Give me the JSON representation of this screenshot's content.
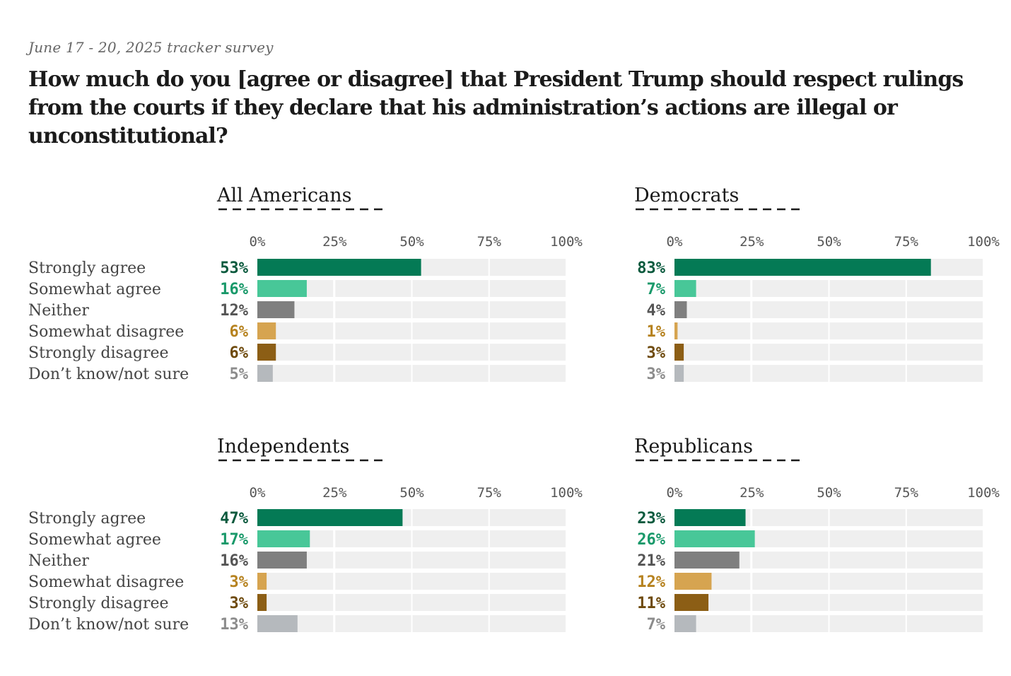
{
  "subtitle": "June 17 - 20, 2025 tracker survey",
  "title": "How much do you [agree or disagree] that President Trump should respect rulings from the courts if they declare that his administration’s actions are illegal or unconstitutional?",
  "colors": {
    "Strongly agree": "#047a55",
    "Somewhat agree": "#48c798",
    "Neither": "#7f7f7f",
    "Somewhat disagree": "#d6a450",
    "Strongly disagree": "#8c5e15",
    "Don’t know/not sure": "#b5b9bd",
    "track": "#efefef",
    "label_colors": {
      "Strongly agree": "#0b5a3e",
      "Somewhat agree": "#19996a",
      "Neither": "#555555",
      "Somewhat disagree": "#b6821f",
      "Strongly disagree": "#6e4a0d",
      "Don’t know/not sure": "#8c8c8c"
    }
  },
  "chart_data": [
    {
      "type": "bar",
      "title": "All Americans",
      "categories": [
        "Strongly agree",
        "Somewhat agree",
        "Neither",
        "Somewhat disagree",
        "Strongly disagree",
        "Don’t know/not sure"
      ],
      "values": [
        53,
        16,
        12,
        6,
        6,
        5
      ],
      "value_labels": [
        "53%",
        "16%",
        "12%",
        "6%",
        "6%",
        "5%"
      ],
      "xticks": [
        "0%",
        "25%",
        "50%",
        "75%",
        "100%"
      ],
      "xlim": [
        0,
        100
      ]
    },
    {
      "type": "bar",
      "title": "Democrats",
      "categories": [
        "Strongly agree",
        "Somewhat agree",
        "Neither",
        "Somewhat disagree",
        "Strongly disagree",
        "Don’t know/not sure"
      ],
      "values": [
        83,
        7,
        4,
        1,
        3,
        3
      ],
      "value_labels": [
        "83%",
        "7%",
        "4%",
        "1%",
        "3%",
        "3%"
      ],
      "xticks": [
        "0%",
        "25%",
        "50%",
        "75%",
        "100%"
      ],
      "xlim": [
        0,
        100
      ]
    },
    {
      "type": "bar",
      "title": "Independents",
      "categories": [
        "Strongly agree",
        "Somewhat agree",
        "Neither",
        "Somewhat disagree",
        "Strongly disagree",
        "Don’t know/not sure"
      ],
      "values": [
        47,
        17,
        16,
        3,
        3,
        13
      ],
      "value_labels": [
        "47%",
        "17%",
        "16%",
        "3%",
        "3%",
        "13%"
      ],
      "xticks": [
        "0%",
        "25%",
        "50%",
        "75%",
        "100%"
      ],
      "xlim": [
        0,
        100
      ]
    },
    {
      "type": "bar",
      "title": "Republicans",
      "categories": [
        "Strongly agree",
        "Somewhat agree",
        "Neither",
        "Somewhat disagree",
        "Strongly disagree",
        "Don’t know/not sure"
      ],
      "values": [
        23,
        26,
        21,
        12,
        11,
        7
      ],
      "value_labels": [
        "23%",
        "26%",
        "21%",
        "12%",
        "11%",
        "7%"
      ],
      "xticks": [
        "0%",
        "25%",
        "50%",
        "75%",
        "100%"
      ],
      "xlim": [
        0,
        100
      ]
    }
  ]
}
